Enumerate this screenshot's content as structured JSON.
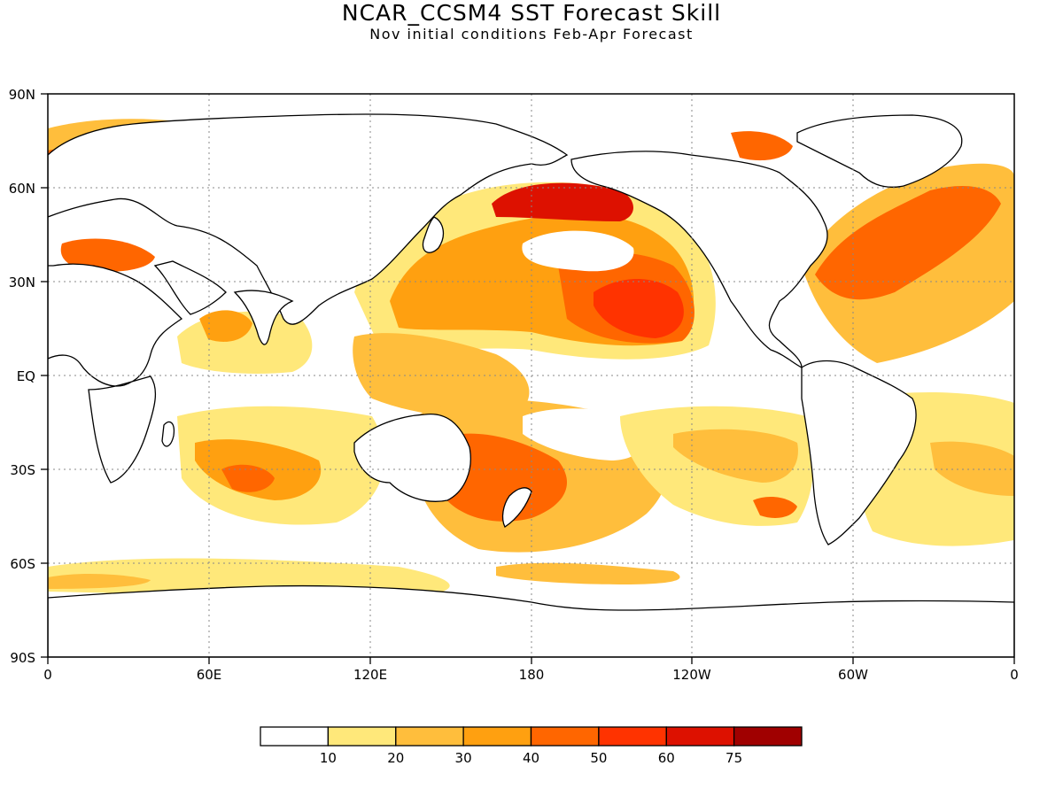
{
  "title": "NCAR_CCSM4 SST Forecast Skill",
  "subtitle": "Nov initial conditions   Feb-Apr Forecast",
  "map": {
    "lat_labels": [
      "90N",
      "60N",
      "30N",
      "EQ",
      "30S",
      "60S",
      "90S"
    ],
    "lon_labels": [
      "0",
      "60E",
      "120E",
      "180",
      "120W",
      "60W",
      "0"
    ],
    "grid": "dotted",
    "land_color": "#ffffff",
    "coastline_color": "#000000"
  },
  "legend": {
    "colors": [
      "#ffffff",
      "#ffe87a",
      "#ffbe3c",
      "#ffa010",
      "#ff6600",
      "#ff3300",
      "#dd1100",
      "#a00000"
    ],
    "labels": [
      "10",
      "20",
      "30",
      "40",
      "50",
      "60",
      "75"
    ]
  }
}
